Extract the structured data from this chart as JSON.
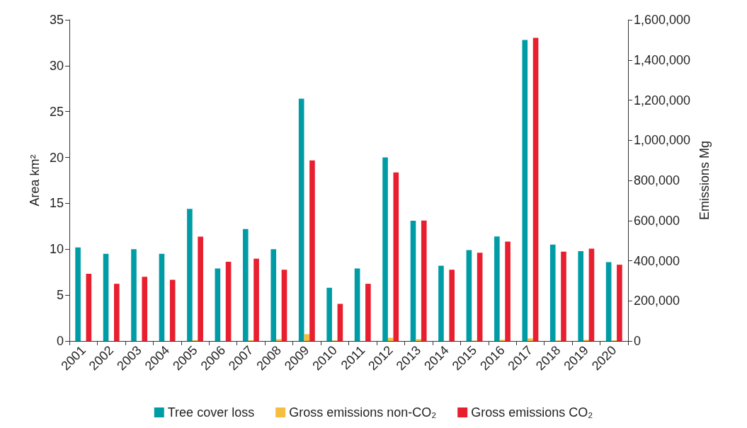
{
  "chart_data": {
    "type": "bar",
    "ylabel": "Area km²",
    "y2label": "Emissions Mg",
    "categories": [
      "2001",
      "2002",
      "2003",
      "2004",
      "2005",
      "2006",
      "2007",
      "2008",
      "2009",
      "2010",
      "2011",
      "2012",
      "2013",
      "2014",
      "2015",
      "2016",
      "2017",
      "2018",
      "2019",
      "2020"
    ],
    "series": [
      {
        "name": "Tree cover loss",
        "color": "#009ca6",
        "values": [
          10.2,
          9.5,
          10.0,
          9.5,
          14.4,
          7.9,
          12.2,
          10.0,
          26.4,
          5.8,
          7.9,
          20.0,
          13.1,
          8.2,
          9.9,
          11.4,
          32.8,
          10.5,
          9.8,
          8.6
        ]
      },
      {
        "name": "Gross emissions non-CO₂",
        "color": "#f5be41",
        "axis": "y2",
        "values": [
          null,
          null,
          null,
          null,
          4000,
          null,
          4000,
          9000,
          34000,
          3000,
          null,
          16000,
          9000,
          null,
          2000,
          6000,
          13000,
          3000,
          6000,
          3000
        ]
      },
      {
        "name": "Gross emissions CO₂",
        "color": "#e81f2f",
        "axis": "y2",
        "values": [
          335000,
          285000,
          320000,
          305000,
          520000,
          395000,
          410000,
          355000,
          900000,
          185000,
          285000,
          840000,
          600000,
          355000,
          440000,
          495000,
          1510000,
          445000,
          460000,
          380000
        ]
      }
    ],
    "ylim": [
      0,
      35
    ],
    "yticks": [
      0,
      5,
      10,
      15,
      20,
      25,
      30,
      35
    ],
    "y2lim": [
      0,
      1600000
    ],
    "y2ticks": [
      0,
      {
        "value": 200000,
        "label": "200,000"
      },
      {
        "value": 400000,
        "label": "400,000"
      },
      {
        "value": 600000,
        "label": "600,000"
      },
      {
        "value": 800000,
        "label": "800,000"
      },
      {
        "value": 1000000,
        "label": "1,000,000"
      },
      {
        "value": 1200000,
        "label": "1,200,000"
      },
      {
        "value": 1400000,
        "label": "1,400,000"
      },
      {
        "value": 1600000,
        "label": "1,600,000"
      }
    ],
    "grid": false,
    "legend": "bottom"
  }
}
